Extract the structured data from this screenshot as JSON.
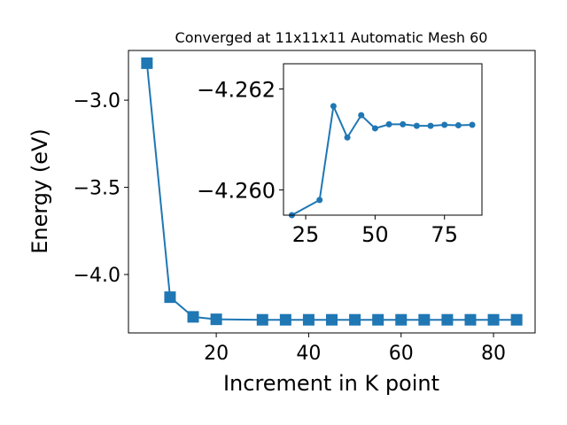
{
  "colors": {
    "series": "#1f77b4",
    "axes": "#000000",
    "background": "#ffffff"
  },
  "chart_data": [
    {
      "type": "line",
      "marker": "square",
      "title": "Converged at 11x11x11 Automatic Mesh 60",
      "xlabel": "Increment in K point",
      "ylabel": "Energy (eV)",
      "xlim": [
        1.0,
        89.0
      ],
      "ylim": [
        -4.335,
        -2.715
      ],
      "xticks": [
        20,
        40,
        60,
        80
      ],
      "xtick_labels": [
        "20",
        "40",
        "60",
        "80"
      ],
      "yticks": [
        -4.0,
        -3.5,
        -3.0
      ],
      "ytick_labels": [
        "−4.0",
        "−3.5",
        "−3.0"
      ],
      "grid": false,
      "series": [
        {
          "x": [
            5,
            10,
            15,
            20,
            30,
            35,
            40,
            45,
            50,
            55,
            60,
            65,
            70,
            75,
            80,
            85
          ],
          "y": [
            -2.788,
            -4.13,
            -4.243,
            -4.257,
            -4.2598,
            -4.2598,
            -4.2598,
            -4.2598,
            -4.2598,
            -4.2598,
            -4.2598,
            -4.2598,
            -4.2598,
            -4.2598,
            -4.2598,
            -4.2598
          ]
        }
      ]
    },
    {
      "type": "line",
      "marker": "circle",
      "title": "",
      "xlim": [
        17.0,
        88.5
      ],
      "ylim": [
        -4.2595,
        -4.2625
      ],
      "xticks": [
        25,
        50,
        75
      ],
      "xtick_labels": [
        "25",
        "50",
        "75"
      ],
      "yticks": [
        -4.26,
        -4.262
      ],
      "ytick_labels": [
        "−4.260",
        "−4.262"
      ],
      "grid": false,
      "series": [
        {
          "x": [
            20,
            30,
            35,
            40,
            45,
            50,
            55,
            60,
            65,
            70,
            75,
            80,
            85
          ],
          "y": [
            -4.2595,
            -4.2598,
            -4.26166,
            -4.26104,
            -4.26148,
            -4.26122,
            -4.2613,
            -4.2613,
            -4.26127,
            -4.26127,
            -4.26129,
            -4.26128,
            -4.26129
          ]
        }
      ]
    }
  ]
}
